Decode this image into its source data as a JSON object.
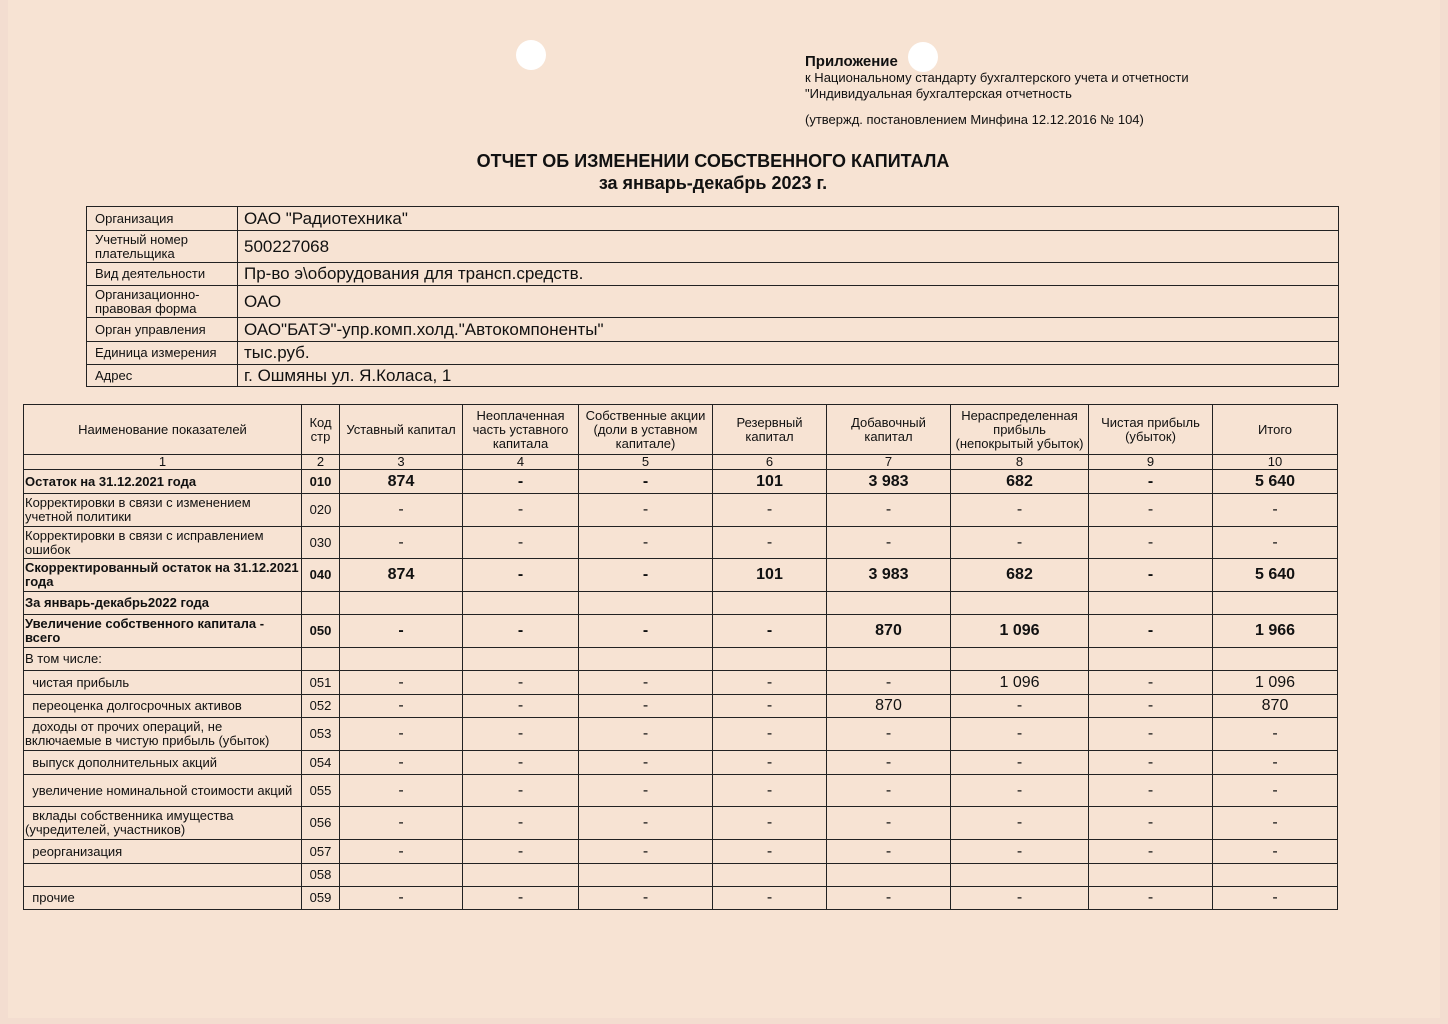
{
  "appendix": {
    "title": "Приложение",
    "line1": "к Национальному стандарту бухгалтерского учета и отчетности",
    "line2": "\"Индивидуальная бухгалтерская отчетность",
    "line3": "(утвержд. постановлением Минфина 12.12.2016 № 104)"
  },
  "title": "ОТЧЕТ ОБ ИЗМЕНЕНИИ СОБСТВЕННОГО КАПИТАЛА",
  "subtitle": "за январь-декабрь  2023 г.",
  "info": [
    {
      "label": "Организация",
      "value": "ОАО \"Радиотехника\""
    },
    {
      "label": "Учетный номер плательщика",
      "value": "500227068"
    },
    {
      "label": "Вид деятельности",
      "value": "Пр-во э\\оборудования для трансп.средств."
    },
    {
      "label": "Организационно-правовая форма",
      "value": "ОАО"
    },
    {
      "label": "Орган управления",
      "value": "ОАО\"БАТЭ\"-упр.комп.холд.\"Автокомпоненты\""
    },
    {
      "label": "Единица измерения",
      "value": "тыс.руб."
    },
    {
      "label": "Адрес",
      "value": "г. Ошмяны ул. Я.Коласа, 1"
    }
  ],
  "table": {
    "headers": [
      "Наименование показателей",
      "Код стр",
      "Уставный капитал",
      "Неоплаченная часть уставного капитала",
      "Собственные акции (доли в уставном капитале)",
      "Резервный капитал",
      "Добавочный капитал",
      "Нераспределенная прибыль (непокрытый убыток)",
      "Чистая прибыль (убыток)",
      "Итого"
    ],
    "numbers": [
      "1",
      "2",
      "3",
      "4",
      "5",
      "6",
      "7",
      "8",
      "9",
      "10"
    ],
    "rows": [
      {
        "name": "Остаток на 31.12.2021 года",
        "code": "010",
        "bold": true,
        "values": [
          "874",
          "-",
          "-",
          "101",
          "3 983",
          "682",
          "-",
          "5 640"
        ]
      },
      {
        "name": "Корректировки в связи с изменением учетной политики",
        "code": "020",
        "values": [
          "-",
          "-",
          "-",
          "-",
          "-",
          "-",
          "-",
          "-"
        ]
      },
      {
        "name": "Корректировки в связи с исправлением ошибок",
        "code": "030",
        "values": [
          "-",
          "-",
          "-",
          "-",
          "-",
          "-",
          "-",
          "-"
        ]
      },
      {
        "name": "Скорректированный остаток на 31.12.2021 года",
        "code": "040",
        "bold": true,
        "values": [
          "874",
          "-",
          "-",
          "101",
          "3 983",
          "682",
          "-",
          "5 640"
        ]
      },
      {
        "name": "За январь-декабрь2022 года",
        "code": "",
        "bold": true,
        "values": [
          "",
          "",
          "",
          "",
          "",
          "",
          "",
          ""
        ]
      },
      {
        "name": "Увеличение собственного капитала - всего",
        "code": "050",
        "bold": true,
        "values": [
          "-",
          "-",
          "-",
          "-",
          "870",
          "1 096",
          "-",
          "1 966"
        ]
      },
      {
        "name": "В том числе:",
        "code": "",
        "values": [
          "",
          "",
          "",
          "",
          "",
          "",
          "",
          ""
        ]
      },
      {
        "name": "  чистая прибыль",
        "code": "051",
        "values": [
          "-",
          "-",
          "-",
          "-",
          "-",
          "1 096",
          "-",
          "1 096"
        ]
      },
      {
        "name": "  переоценка долгосрочных активов",
        "code": "052",
        "values": [
          "-",
          "-",
          "-",
          "-",
          "870",
          "-",
          "-",
          "870"
        ]
      },
      {
        "name": "  доходы от прочих операций, не включаемые в чистую прибыль (убыток)",
        "code": "053",
        "values": [
          "-",
          "-",
          "-",
          "-",
          "-",
          "-",
          "-",
          "-"
        ]
      },
      {
        "name": "  выпуск дополнительных акций",
        "code": "054",
        "values": [
          "-",
          "-",
          "-",
          "-",
          "-",
          "-",
          "-",
          "-"
        ]
      },
      {
        "name": "  увеличение номинальной стоимости акций",
        "code": "055",
        "values": [
          "-",
          "-",
          "-",
          "-",
          "-",
          "-",
          "-",
          "-"
        ]
      },
      {
        "name": "  вклады собственника имущества (учредителей, участников)",
        "code": "056",
        "values": [
          "-",
          "-",
          "-",
          "-",
          "-",
          "-",
          "-",
          "-"
        ]
      },
      {
        "name": "  реорганизация",
        "code": "057",
        "values": [
          "-",
          "-",
          "-",
          "-",
          "-",
          "-",
          "-",
          "-"
        ]
      },
      {
        "name": "",
        "code": "058",
        "values": [
          "",
          "",
          "",
          "",
          "",
          "",
          "",
          ""
        ]
      },
      {
        "name": "  прочие",
        "code": "059",
        "values": [
          "-",
          "-",
          "-",
          "-",
          "-",
          "-",
          "-",
          "-"
        ]
      }
    ]
  }
}
